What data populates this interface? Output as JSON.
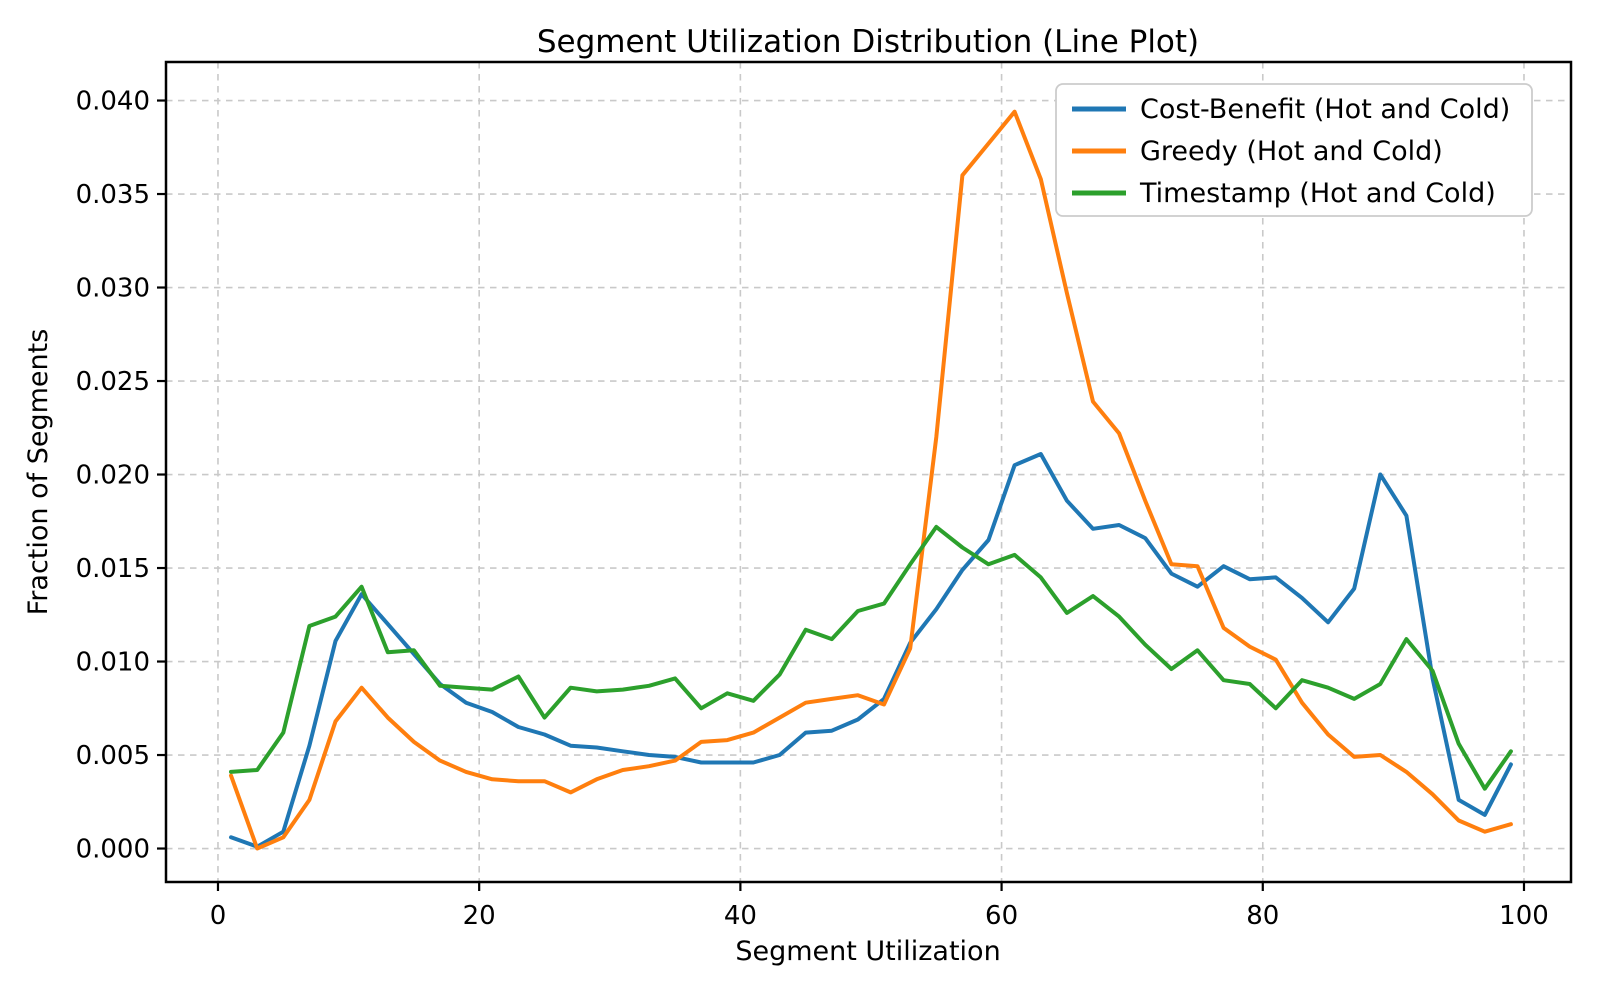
{
  "chart_data": {
    "type": "line",
    "title": "Segment Utilization Distribution (Line Plot)",
    "xlabel": "Segment Utilization",
    "ylabel": "Fraction of Segments",
    "x": [
      1,
      3,
      5,
      7,
      9,
      11,
      13,
      15,
      17,
      19,
      21,
      23,
      25,
      27,
      29,
      31,
      33,
      35,
      37,
      39,
      41,
      43,
      45,
      47,
      49,
      51,
      53,
      55,
      57,
      59,
      61,
      63,
      65,
      67,
      69,
      71,
      73,
      75,
      77,
      79,
      81,
      83,
      85,
      87,
      89,
      91,
      93,
      95,
      97,
      99
    ],
    "series": [
      {
        "name": "Cost-Benefit (Hot and Cold)",
        "color": "#1f77b4",
        "values": [
          0.0006,
          0.0001,
          0.0009,
          0.0055,
          0.0111,
          0.0136,
          0.012,
          0.0104,
          0.0088,
          0.0078,
          0.0073,
          0.0065,
          0.0061,
          0.0055,
          0.0054,
          0.0052,
          0.005,
          0.0049,
          0.0046,
          0.0046,
          0.0046,
          0.005,
          0.0062,
          0.0063,
          0.0069,
          0.008,
          0.011,
          0.0128,
          0.0149,
          0.0165,
          0.0205,
          0.0211,
          0.0186,
          0.0171,
          0.0173,
          0.0166,
          0.0147,
          0.014,
          0.0151,
          0.0144,
          0.0145,
          0.0134,
          0.0121,
          0.0139,
          0.02,
          0.0178,
          0.0091,
          0.0026,
          0.0018,
          0.0045
        ]
      },
      {
        "name": "Greedy (Hot and Cold)",
        "color": "#ff7f0e",
        "values": [
          0.0039,
          0.0,
          0.0006,
          0.0026,
          0.0068,
          0.0086,
          0.007,
          0.0057,
          0.0047,
          0.0041,
          0.0037,
          0.0036,
          0.0036,
          0.003,
          0.0037,
          0.0042,
          0.0044,
          0.0047,
          0.0057,
          0.0058,
          0.0062,
          0.007,
          0.0078,
          0.008,
          0.0082,
          0.0077,
          0.0107,
          0.022,
          0.036,
          0.0377,
          0.0394,
          0.0358,
          0.0297,
          0.0239,
          0.0222,
          0.0186,
          0.0152,
          0.0151,
          0.0118,
          0.0108,
          0.0101,
          0.0078,
          0.0061,
          0.0049,
          0.005,
          0.0041,
          0.0029,
          0.0015,
          0.0009,
          0.0013
        ]
      },
      {
        "name": "Timestamp (Hot and Cold)",
        "color": "#2ca02c",
        "values": [
          0.0041,
          0.0042,
          0.0062,
          0.0119,
          0.0124,
          0.014,
          0.0105,
          0.0106,
          0.0087,
          0.0086,
          0.0085,
          0.0092,
          0.007,
          0.0086,
          0.0084,
          0.0085,
          0.0087,
          0.0091,
          0.0075,
          0.0083,
          0.0079,
          0.0093,
          0.0117,
          0.0112,
          0.0127,
          0.0131,
          0.0152,
          0.0172,
          0.0161,
          0.0152,
          0.0157,
          0.0145,
          0.0126,
          0.0135,
          0.0124,
          0.0109,
          0.0096,
          0.0106,
          0.009,
          0.0088,
          0.0075,
          0.009,
          0.0086,
          0.008,
          0.0088,
          0.0112,
          0.0095,
          0.0056,
          0.0032,
          0.0052
        ]
      }
    ],
    "xticks": {
      "values": [
        0,
        20,
        40,
        60,
        80,
        100
      ],
      "labels": [
        "0",
        "20",
        "40",
        "60",
        "80",
        "100"
      ]
    },
    "yticks": {
      "values": [
        0.0,
        0.005,
        0.01,
        0.015,
        0.02,
        0.025,
        0.03,
        0.035,
        0.04
      ],
      "labels": [
        "0.000",
        "0.005",
        "0.010",
        "0.015",
        "0.020",
        "0.025",
        "0.030",
        "0.035",
        "0.040"
      ]
    },
    "xlim": [
      -3.98,
      103.6
    ],
    "ylim": [
      -0.00179,
      0.04206
    ],
    "grid": {
      "on": true,
      "style": "dashed",
      "color": "#c9c9c9"
    },
    "legend": {
      "position": "upper-right"
    },
    "axes": {
      "spine_color": "#000000",
      "background": "#ffffff"
    }
  }
}
